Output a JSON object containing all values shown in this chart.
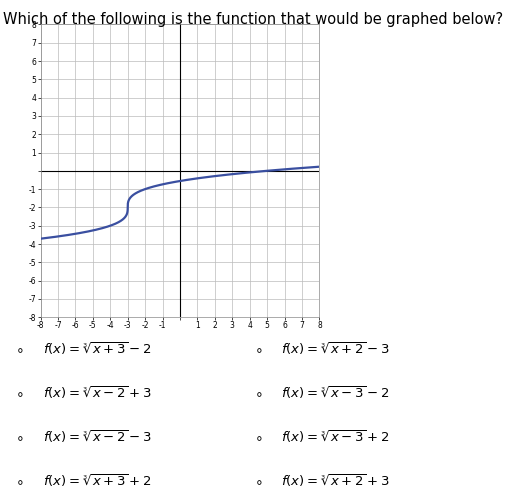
{
  "title": "Which of the following is the function that would be graphed below?",
  "title_fontsize": 10.5,
  "func": "cbrt(x+3)-2",
  "x_min": -8,
  "x_max": 8,
  "y_min": -8,
  "y_max": 8,
  "curve_color": "#3a4fa0",
  "curve_linewidth": 1.6,
  "grid_color": "#bbbbbb",
  "bg_color": "#ffffff",
  "options_left": [
    "$f(x) = \\sqrt[3]{x+3}-2$",
    "$f(x) = \\sqrt[3]{x-2}+3$",
    "$f(x) = \\sqrt[3]{x-2}-3$",
    "$f(x) = \\sqrt[3]{x+3}+2$"
  ],
  "options_right": [
    "$f(x) = \\sqrt[3]{x+2}-3$",
    "$f(x) = \\sqrt[3]{x-3}-2$",
    "$f(x) = \\sqrt[3]{x-3}+2$",
    "$f(x) = \\sqrt[3]{x+2}+3$"
  ]
}
